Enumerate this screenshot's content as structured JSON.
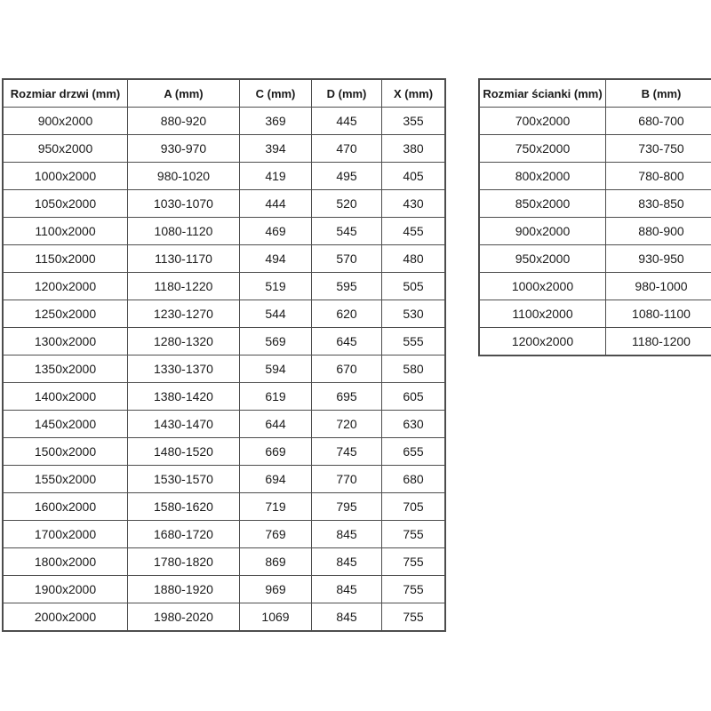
{
  "door_table": {
    "headers": [
      "Rozmiar drzwi (mm)",
      "A (mm)",
      "C (mm)",
      "D (mm)",
      "X (mm)"
    ],
    "rows": [
      [
        "900x2000",
        "880-920",
        "369",
        "445",
        "355"
      ],
      [
        "950x2000",
        "930-970",
        "394",
        "470",
        "380"
      ],
      [
        "1000x2000",
        "980-1020",
        "419",
        "495",
        "405"
      ],
      [
        "1050x2000",
        "1030-1070",
        "444",
        "520",
        "430"
      ],
      [
        "1100x2000",
        "1080-1120",
        "469",
        "545",
        "455"
      ],
      [
        "1150x2000",
        "1130-1170",
        "494",
        "570",
        "480"
      ],
      [
        "1200x2000",
        "1180-1220",
        "519",
        "595",
        "505"
      ],
      [
        "1250x2000",
        "1230-1270",
        "544",
        "620",
        "530"
      ],
      [
        "1300x2000",
        "1280-1320",
        "569",
        "645",
        "555"
      ],
      [
        "1350x2000",
        "1330-1370",
        "594",
        "670",
        "580"
      ],
      [
        "1400x2000",
        "1380-1420",
        "619",
        "695",
        "605"
      ],
      [
        "1450x2000",
        "1430-1470",
        "644",
        "720",
        "630"
      ],
      [
        "1500x2000",
        "1480-1520",
        "669",
        "745",
        "655"
      ],
      [
        "1550x2000",
        "1530-1570",
        "694",
        "770",
        "680"
      ],
      [
        "1600x2000",
        "1580-1620",
        "719",
        "795",
        "705"
      ],
      [
        "1700x2000",
        "1680-1720",
        "769",
        "845",
        "755"
      ],
      [
        "1800x2000",
        "1780-1820",
        "869",
        "845",
        "755"
      ],
      [
        "1900x2000",
        "1880-1920",
        "969",
        "845",
        "755"
      ],
      [
        "2000x2000",
        "1980-2020",
        "1069",
        "845",
        "755"
      ]
    ]
  },
  "wall_table": {
    "headers": [
      "Rozmiar ścianki (mm)",
      "B (mm)"
    ],
    "rows": [
      [
        "700x2000",
        "680-700"
      ],
      [
        "750x2000",
        "730-750"
      ],
      [
        "800x2000",
        "780-800"
      ],
      [
        "850x2000",
        "830-850"
      ],
      [
        "900x2000",
        "880-900"
      ],
      [
        "950x2000",
        "930-950"
      ],
      [
        "1000x2000",
        "980-1000"
      ],
      [
        "1100x2000",
        "1080-1100"
      ],
      [
        "1200x2000",
        "1180-1200"
      ]
    ]
  },
  "colors": {
    "border": "#4d4d4d",
    "text": "#1a1a1a",
    "background": "#ffffff"
  }
}
